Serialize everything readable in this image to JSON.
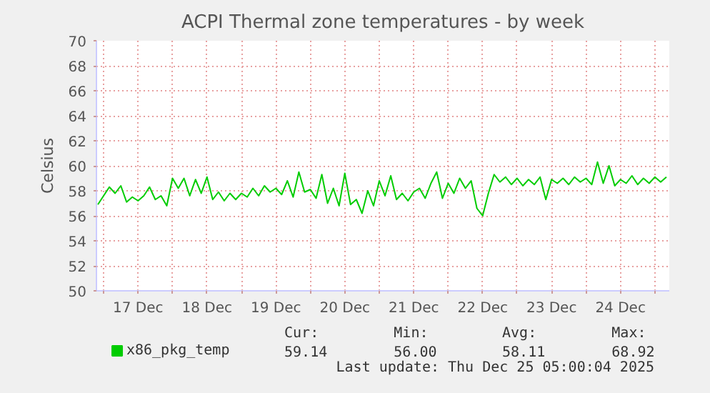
{
  "chart_data": {
    "type": "line",
    "title": "ACPI Thermal zone temperatures - by week",
    "ylabel": "Celsius",
    "xlim": [
      "2025-12-16T21:30",
      "2025-12-25T05:00"
    ],
    "ylim": [
      50,
      70
    ],
    "yticks": [
      50,
      52,
      54,
      56,
      58,
      60,
      62,
      64,
      66,
      68,
      70
    ],
    "xticks": [
      {
        "value": "2025-12-17T00:00",
        "label": null
      },
      {
        "value": "2025-12-17T12:00",
        "label": "17 Dec"
      },
      {
        "value": "2025-12-18T00:00",
        "label": null
      },
      {
        "value": "2025-12-18T12:00",
        "label": "18 Dec"
      },
      {
        "value": "2025-12-19T00:00",
        "label": null
      },
      {
        "value": "2025-12-19T12:00",
        "label": "19 Dec"
      },
      {
        "value": "2025-12-20T00:00",
        "label": null
      },
      {
        "value": "2025-12-20T12:00",
        "label": "20 Dec"
      },
      {
        "value": "2025-12-21T00:00",
        "label": null
      },
      {
        "value": "2025-12-21T12:00",
        "label": "21 Dec"
      },
      {
        "value": "2025-12-22T00:00",
        "label": null
      },
      {
        "value": "2025-12-22T12:00",
        "label": "22 Dec"
      },
      {
        "value": "2025-12-23T00:00",
        "label": null
      },
      {
        "value": "2025-12-23T12:00",
        "label": "23 Dec"
      },
      {
        "value": "2025-12-24T00:00",
        "label": null
      },
      {
        "value": "2025-12-24T12:00",
        "label": "24 Dec"
      },
      {
        "value": "2025-12-25T00:00",
        "label": null
      }
    ],
    "grid": true,
    "legend": "bottom",
    "marker": "none",
    "line_style": "solid",
    "annotations": [
      "Cur:",
      "Min:",
      "Avg:",
      "Max:",
      "59.14",
      "56.00",
      "58.11",
      "68.92",
      "Last update: Thu Dec 25 05:00:04 2025"
    ],
    "series": [
      {
        "name": "x86_pkg_temp",
        "color": "#00cc00",
        "x": [
          "2025-12-16T22:00",
          "2025-12-17T00:00",
          "2025-12-17T02:00",
          "2025-12-17T04:00",
          "2025-12-17T06:00",
          "2025-12-17T08:00",
          "2025-12-17T10:00",
          "2025-12-17T12:00",
          "2025-12-17T14:00",
          "2025-12-17T16:00",
          "2025-12-17T18:00",
          "2025-12-17T20:00",
          "2025-12-17T22:00",
          "2025-12-18T00:00",
          "2025-12-18T02:00",
          "2025-12-18T04:00",
          "2025-12-18T06:00",
          "2025-12-18T08:00",
          "2025-12-18T10:00",
          "2025-12-18T12:00",
          "2025-12-18T14:00",
          "2025-12-18T16:00",
          "2025-12-18T18:00",
          "2025-12-18T20:00",
          "2025-12-18T22:00",
          "2025-12-19T00:00",
          "2025-12-19T02:00",
          "2025-12-19T04:00",
          "2025-12-19T06:00",
          "2025-12-19T08:00",
          "2025-12-19T10:00",
          "2025-12-19T12:00",
          "2025-12-19T14:00",
          "2025-12-19T16:00",
          "2025-12-19T18:00",
          "2025-12-19T20:00",
          "2025-12-19T22:00",
          "2025-12-20T00:00",
          "2025-12-20T02:00",
          "2025-12-20T04:00",
          "2025-12-20T06:00",
          "2025-12-20T08:00",
          "2025-12-20T10:00",
          "2025-12-20T12:00",
          "2025-12-20T14:00",
          "2025-12-20T16:00",
          "2025-12-20T18:00",
          "2025-12-20T20:00",
          "2025-12-20T22:00",
          "2025-12-21T00:00",
          "2025-12-21T02:00",
          "2025-12-21T04:00",
          "2025-12-21T06:00",
          "2025-12-21T08:00",
          "2025-12-21T10:00",
          "2025-12-21T12:00",
          "2025-12-21T14:00",
          "2025-12-21T16:00",
          "2025-12-21T18:00",
          "2025-12-21T20:00",
          "2025-12-21T22:00",
          "2025-12-22T00:00",
          "2025-12-22T02:00",
          "2025-12-22T04:00",
          "2025-12-22T06:00",
          "2025-12-22T08:00",
          "2025-12-22T10:00",
          "2025-12-22T12:00",
          "2025-12-22T14:00",
          "2025-12-22T16:00",
          "2025-12-22T18:00",
          "2025-12-22T20:00",
          "2025-12-22T22:00",
          "2025-12-23T00:00",
          "2025-12-23T02:00",
          "2025-12-23T04:00",
          "2025-12-23T06:00",
          "2025-12-23T08:00",
          "2025-12-23T10:00",
          "2025-12-23T12:00",
          "2025-12-23T14:00",
          "2025-12-23T16:00",
          "2025-12-23T18:00",
          "2025-12-23T20:00",
          "2025-12-23T22:00",
          "2025-12-24T00:00",
          "2025-12-24T02:00",
          "2025-12-24T04:00",
          "2025-12-24T06:00",
          "2025-12-24T08:00",
          "2025-12-24T10:00",
          "2025-12-24T12:00",
          "2025-12-24T14:00",
          "2025-12-24T16:00",
          "2025-12-24T18:00",
          "2025-12-24T20:00",
          "2025-12-24T22:00",
          "2025-12-25T00:00",
          "2025-12-25T02:00",
          "2025-12-25T04:00"
        ],
        "values": [
          56.9,
          57.6,
          58.3,
          57.8,
          58.4,
          57.1,
          57.5,
          57.2,
          57.6,
          58.3,
          57.3,
          57.6,
          56.8,
          59.0,
          58.2,
          59.0,
          57.6,
          58.9,
          57.8,
          59.1,
          57.3,
          57.9,
          57.2,
          57.8,
          57.3,
          57.8,
          57.5,
          58.2,
          57.6,
          58.4,
          57.9,
          58.2,
          57.7,
          58.8,
          57.5,
          59.5,
          57.9,
          58.1,
          57.4,
          59.3,
          57.0,
          58.2,
          56.8,
          59.4,
          56.9,
          57.3,
          56.2,
          58.0,
          56.8,
          58.8,
          57.6,
          59.2,
          57.3,
          57.8,
          57.2,
          57.9,
          58.2,
          57.4,
          58.6,
          59.5,
          57.4,
          58.6,
          57.8,
          59.0,
          58.2,
          58.8,
          56.6,
          56.0,
          57.8,
          59.3,
          58.7,
          59.1,
          58.5,
          59.0,
          58.4,
          58.9,
          58.5,
          59.1,
          57.3,
          58.9,
          58.6,
          59.0,
          58.5,
          59.1,
          58.7,
          59.0,
          58.5,
          60.3,
          58.6,
          60.0,
          58.4,
          58.9,
          58.6,
          59.2,
          58.5,
          59.0,
          58.6,
          59.1,
          58.7,
          59.1
        ]
      }
    ]
  }
}
